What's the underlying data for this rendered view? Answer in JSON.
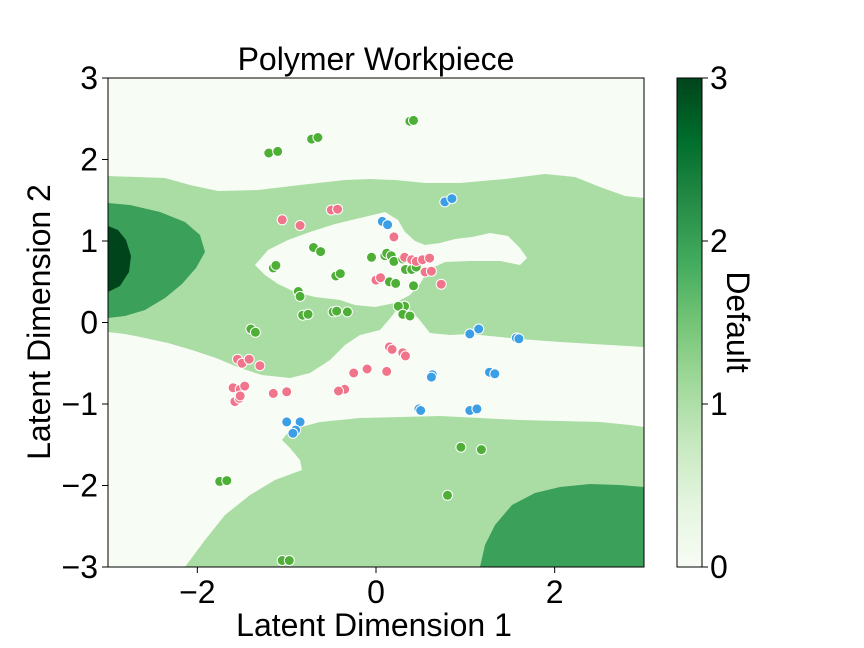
{
  "chart_data": {
    "type": "scatter",
    "title": "Polymer Workpiece",
    "xlabel": "Latent Dimension 1",
    "ylabel": "Latent Dimension 2",
    "xlim": [
      -3,
      3
    ],
    "ylim": [
      -3,
      3
    ],
    "xticks": [
      -2,
      0,
      2
    ],
    "yticks": [
      -3,
      -2,
      -1,
      0,
      1,
      2,
      3
    ],
    "grid": false,
    "legend": "none",
    "background": {
      "type": "filled-contour",
      "colormap": "Greens",
      "levels": [
        0,
        1,
        2,
        3
      ],
      "level_colors": [
        "#f7fcf5",
        "#aadda4",
        "#3aa05a",
        "#00441b"
      ]
    },
    "colorbar": {
      "label": "Default",
      "ticks": [
        0,
        1,
        2,
        3
      ],
      "range": [
        0,
        3
      ],
      "gradient": [
        "#f7fcf5",
        "#e5f5e0",
        "#c7e9c0",
        "#a1d99b",
        "#74c476",
        "#41ab5d",
        "#238b45",
        "#006d2c",
        "#00441b"
      ]
    },
    "series": [
      {
        "color": "#4daf36",
        "points": [
          [
            -1.2,
            2.08
          ],
          [
            -1.1,
            2.1
          ],
          [
            -0.72,
            2.25
          ],
          [
            -0.65,
            2.27
          ],
          [
            0.38,
            2.47
          ],
          [
            0.42,
            2.48
          ],
          [
            -1.15,
            0.67
          ],
          [
            -1.12,
            0.7
          ],
          [
            -0.7,
            0.92
          ],
          [
            -0.62,
            0.87
          ],
          [
            -0.45,
            0.57
          ],
          [
            -0.4,
            0.6
          ],
          [
            -0.05,
            0.8
          ],
          [
            0.1,
            0.82
          ],
          [
            0.12,
            0.85
          ],
          [
            0.17,
            0.82
          ],
          [
            0.2,
            0.75
          ],
          [
            0.3,
            0.78
          ],
          [
            0.33,
            0.65
          ],
          [
            0.4,
            0.65
          ],
          [
            0.15,
            0.5
          ],
          [
            0.22,
            0.48
          ],
          [
            0.42,
            0.45
          ],
          [
            0.45,
            0.68
          ],
          [
            0.32,
            0.2
          ],
          [
            0.25,
            0.2
          ],
          [
            0.3,
            0.1
          ],
          [
            0.38,
            0.08
          ],
          [
            -0.87,
            0.38
          ],
          [
            -0.85,
            0.32
          ],
          [
            -0.82,
            0.09
          ],
          [
            -0.76,
            0.1
          ],
          [
            -0.48,
            0.13
          ],
          [
            -0.44,
            0.14
          ],
          [
            -0.32,
            0.13
          ],
          [
            -1.4,
            -0.08
          ],
          [
            -1.35,
            -0.12
          ],
          [
            -1.75,
            -1.95
          ],
          [
            -1.67,
            -1.94
          ],
          [
            -1.05,
            -2.92
          ],
          [
            -0.97,
            -2.92
          ],
          [
            0.95,
            -1.53
          ],
          [
            1.18,
            -1.56
          ],
          [
            0.8,
            -2.12
          ]
        ]
      },
      {
        "color": "#f0758a",
        "points": [
          [
            -1.05,
            1.26
          ],
          [
            -0.85,
            1.19
          ],
          [
            -0.5,
            1.38
          ],
          [
            -0.43,
            1.39
          ],
          [
            0.2,
            1.05
          ],
          [
            0.32,
            0.8
          ],
          [
            0.4,
            0.77
          ],
          [
            0.45,
            0.75
          ],
          [
            0.52,
            0.77
          ],
          [
            0.6,
            0.79
          ],
          [
            0.55,
            0.62
          ],
          [
            0.62,
            0.63
          ],
          [
            0.73,
            0.47
          ],
          [
            0.0,
            0.52
          ],
          [
            0.05,
            0.55
          ],
          [
            0.15,
            -0.3
          ],
          [
            0.18,
            -0.33
          ],
          [
            0.3,
            -0.37
          ],
          [
            0.33,
            -0.41
          ],
          [
            0.12,
            -0.6
          ],
          [
            -0.1,
            -0.57
          ],
          [
            -0.25,
            -0.62
          ],
          [
            -0.35,
            -0.82
          ],
          [
            -0.42,
            -0.84
          ],
          [
            -1.55,
            -0.45
          ],
          [
            -1.5,
            -0.5
          ],
          [
            -1.42,
            -0.45
          ],
          [
            -1.3,
            -0.53
          ],
          [
            -1.6,
            -0.8
          ],
          [
            -1.52,
            -0.82
          ],
          [
            -1.47,
            -0.78
          ],
          [
            -1.58,
            -0.97
          ],
          [
            -1.53,
            -0.93
          ],
          [
            -1.52,
            -0.9
          ],
          [
            -1.15,
            -0.87
          ],
          [
            -1.0,
            -0.85
          ]
        ]
      },
      {
        "color": "#3c9fe6",
        "points": [
          [
            0.07,
            1.24
          ],
          [
            0.13,
            1.2
          ],
          [
            0.77,
            1.48
          ],
          [
            0.85,
            1.52
          ],
          [
            1.05,
            -0.14
          ],
          [
            1.15,
            -0.08
          ],
          [
            1.57,
            -0.19
          ],
          [
            1.6,
            -0.2
          ],
          [
            1.27,
            -0.61
          ],
          [
            1.33,
            -0.63
          ],
          [
            0.63,
            -0.64
          ],
          [
            0.62,
            -0.67
          ],
          [
            0.48,
            -1.06
          ],
          [
            0.5,
            -1.08
          ],
          [
            1.05,
            -1.08
          ],
          [
            1.13,
            -1.06
          ],
          [
            -1.0,
            -1.22
          ],
          [
            -0.85,
            -1.22
          ],
          [
            -0.9,
            -1.32
          ],
          [
            -0.93,
            -1.36
          ]
        ]
      }
    ]
  }
}
